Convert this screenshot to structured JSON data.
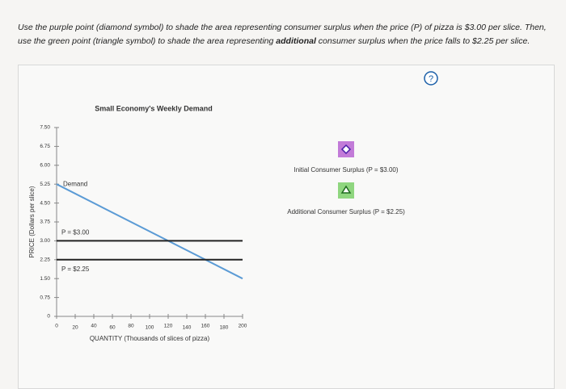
{
  "instructions": [
    "Use the purple point (diamond symbol) to shade the area representing consumer surplus when the price (P) of pizza is $3.00 per slice. Then, use the green point (triangle symbol) to shade the area representing ",
    "additional",
    " consumer surplus when the price falls to $2.25 per slice."
  ],
  "help": "?",
  "tools": [
    {
      "label": "Initial Consumer Surplus (P = $3.00)"
    },
    {
      "label": "Additional Consumer Surplus (P = $2.25)"
    }
  ],
  "chart_data": {
    "type": "line",
    "title": "Small Economy's Weekly Demand",
    "x_label": "QUANTITY (Thousands of slices of pizza)",
    "y_label": "PRICE (Dollars per slice)",
    "series": [
      {
        "name": "Demand",
        "color": "#5b9bd5",
        "x": [
          0,
          200
        ],
        "values": [
          5.25,
          1.5
        ]
      },
      {
        "name": "P = $3.00",
        "color": "#222222",
        "x": [
          0,
          200
        ],
        "values": [
          3.0,
          3.0
        ]
      },
      {
        "name": "P = $2.25",
        "color": "#222222",
        "x": [
          0,
          200
        ],
        "values": [
          2.25,
          2.25
        ]
      }
    ],
    "xlim": [
      0,
      200
    ],
    "xticks": [
      0,
      20,
      40,
      60,
      80,
      100,
      120,
      140,
      160,
      180,
      200
    ],
    "ylim": [
      0,
      7.5
    ],
    "yticks": [
      0,
      {
        "value": 0.75,
        "label": "0.75"
      },
      {
        "value": 1.5,
        "label": "1.50"
      },
      {
        "value": 2.25,
        "label": "2.25"
      },
      {
        "value": 3,
        "label": "3.00"
      },
      {
        "value": 3.75,
        "label": "3.75"
      },
      {
        "value": 4.5,
        "label": "4.50"
      },
      {
        "value": 5.25,
        "label": "5.25"
      },
      {
        "value": 6,
        "label": "6.00"
      },
      {
        "value": 6.75,
        "label": "6.75"
      },
      {
        "value": 7.5,
        "label": "7.50"
      }
    ]
  }
}
